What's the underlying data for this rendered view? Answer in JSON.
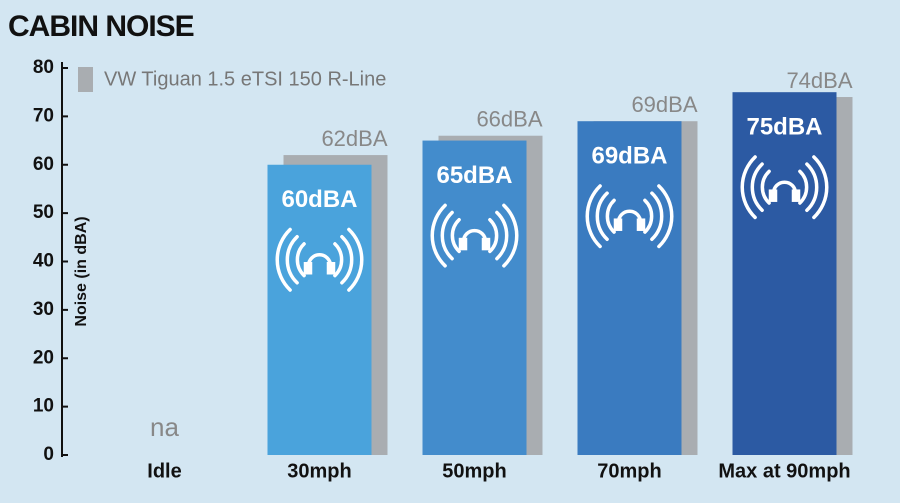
{
  "chart_data": {
    "type": "bar",
    "title": "CABIN NOISE",
    "ylabel": "Noise (in dBA)",
    "categories": [
      "Idle",
      "30mph",
      "50mph",
      "70mph",
      "Max at 90mph"
    ],
    "series": [
      {
        "colors": [
          "#4aa3dc",
          "#4aa3dc",
          "#438ccc",
          "#3a7bc0",
          "#2c5aa3"
        ],
        "values": [
          null,
          60,
          65,
          69,
          75
        ],
        "value_labels": [
          "na",
          "60dBA",
          "65dBA",
          "69dBA",
          "75dBA"
        ]
      },
      {
        "name": "VW Tiguan 1.5 eTSI 150 R-Line",
        "color": "#a9adb1",
        "values": [
          null,
          62,
          66,
          69,
          74
        ],
        "value_labels": [
          null,
          "62dBA",
          "66dBA",
          "69dBA",
          "74dBA"
        ]
      }
    ],
    "ylim": [
      0,
      80
    ],
    "yticks": [
      0,
      10,
      20,
      30,
      40,
      50,
      60,
      70,
      80
    ],
    "legend": "top-left"
  }
}
